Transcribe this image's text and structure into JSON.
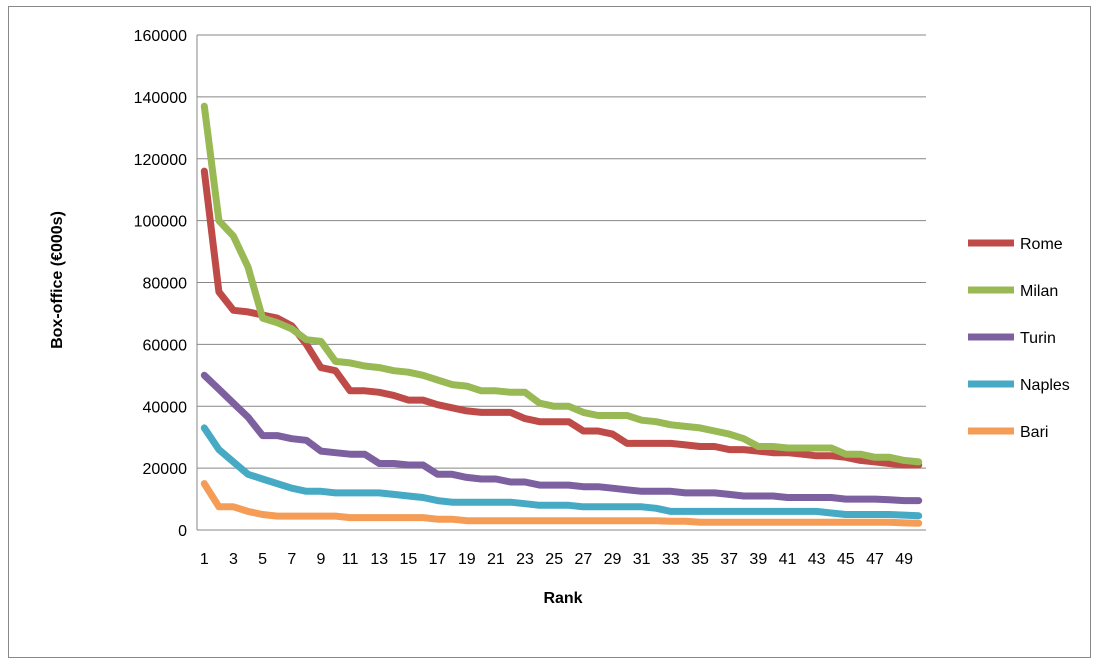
{
  "chart_data": {
    "type": "line",
    "title": "",
    "xlabel": "Rank",
    "ylabel": "Box-office (€000s)",
    "ylim": [
      0,
      160000
    ],
    "y_ticks": [
      "0",
      "20000",
      "40000",
      "60000",
      "80000",
      "100000",
      "120000",
      "140000",
      "160000"
    ],
    "x_tick_labels": [
      "1",
      "3",
      "5",
      "7",
      "9",
      "11",
      "13",
      "15",
      "17",
      "19",
      "21",
      "23",
      "25",
      "27",
      "29",
      "31",
      "33",
      "35",
      "37",
      "39",
      "41",
      "43",
      "45",
      "47",
      "49"
    ],
    "grid": "horizontal",
    "legend_position": "right",
    "x": [
      1,
      2,
      3,
      4,
      5,
      6,
      7,
      8,
      9,
      10,
      11,
      12,
      13,
      14,
      15,
      16,
      17,
      18,
      19,
      20,
      21,
      22,
      23,
      24,
      25,
      26,
      27,
      28,
      29,
      30,
      31,
      32,
      33,
      34,
      35,
      36,
      37,
      38,
      39,
      40,
      41,
      42,
      43,
      44,
      45,
      46,
      47,
      48,
      49,
      50
    ],
    "series": [
      {
        "name": "Rome",
        "color": "#be4b48",
        "values": [
          116000,
          77000,
          71000,
          70500,
          69500,
          68500,
          66000,
          60000,
          52500,
          51500,
          45000,
          45000,
          44500,
          43500,
          42000,
          42000,
          40500,
          39500,
          38500,
          38000,
          38000,
          38000,
          36000,
          35000,
          35000,
          35000,
          32000,
          32000,
          31000,
          28000,
          28000,
          28000,
          28000,
          27500,
          27000,
          27000,
          26000,
          26000,
          25500,
          25000,
          25000,
          24500,
          24000,
          24000,
          23500,
          22500,
          22000,
          21500,
          21000,
          21000
        ]
      },
      {
        "name": "Milan",
        "color": "#98b954",
        "values": [
          137000,
          100000,
          95000,
          85000,
          68500,
          67000,
          65000,
          61500,
          61000,
          54500,
          54000,
          53000,
          52500,
          51500,
          51000,
          50000,
          48500,
          47000,
          46500,
          45000,
          45000,
          44500,
          44500,
          41000,
          40000,
          40000,
          38000,
          37000,
          37000,
          37000,
          35500,
          35000,
          34000,
          33500,
          33000,
          32000,
          31000,
          29500,
          27000,
          27000,
          26500,
          26500,
          26500,
          26500,
          24500,
          24500,
          23500,
          23500,
          22500,
          22000
        ]
      },
      {
        "name": "Turin",
        "color": "#7d60a0",
        "values": [
          50000,
          45500,
          41000,
          36500,
          30500,
          30500,
          29500,
          29000,
          25500,
          25000,
          24500,
          24500,
          21500,
          21500,
          21000,
          21000,
          18000,
          18000,
          17000,
          16500,
          16500,
          15500,
          15500,
          14500,
          14500,
          14500,
          14000,
          14000,
          13500,
          13000,
          12500,
          12500,
          12500,
          12000,
          12000,
          12000,
          11500,
          11000,
          11000,
          11000,
          10500,
          10500,
          10500,
          10500,
          10000,
          10000,
          10000,
          9800,
          9500,
          9500
        ]
      },
      {
        "name": "Naples",
        "color": "#46aac5",
        "values": [
          33000,
          26000,
          22000,
          18000,
          16500,
          15000,
          13500,
          12500,
          12500,
          12000,
          12000,
          12000,
          12000,
          11500,
          11000,
          10500,
          9500,
          9000,
          9000,
          9000,
          9000,
          9000,
          8500,
          8000,
          8000,
          8000,
          7500,
          7500,
          7500,
          7500,
          7500,
          7000,
          6000,
          6000,
          6000,
          6000,
          6000,
          6000,
          6000,
          6000,
          6000,
          6000,
          6000,
          5500,
          5000,
          5000,
          5000,
          5000,
          4800,
          4600
        ]
      },
      {
        "name": "Bari",
        "color": "#f59d56",
        "values": [
          15000,
          7500,
          7500,
          6000,
          5000,
          4500,
          4500,
          4500,
          4500,
          4500,
          4000,
          4000,
          4000,
          4000,
          4000,
          4000,
          3500,
          3500,
          3000,
          3000,
          3000,
          3000,
          3000,
          3000,
          3000,
          3000,
          3000,
          3000,
          3000,
          3000,
          3000,
          3000,
          2800,
          2800,
          2500,
          2500,
          2500,
          2500,
          2500,
          2500,
          2500,
          2500,
          2500,
          2500,
          2500,
          2500,
          2500,
          2500,
          2300,
          2200
        ]
      }
    ]
  }
}
